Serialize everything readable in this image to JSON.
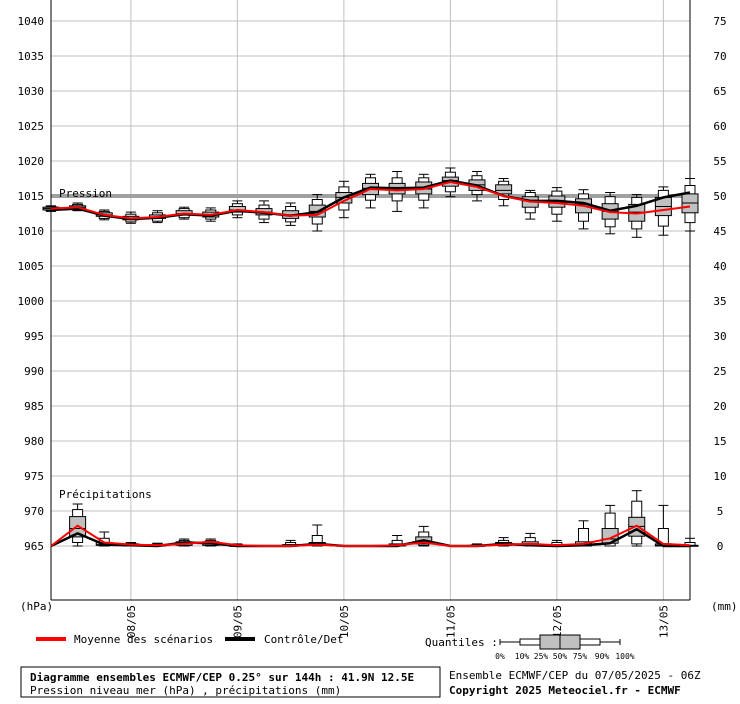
{
  "chart_data": {
    "type": "boxplot",
    "title": "Diagramme ensembles ECMWF/CEP 0.25° sur 144h : 41.9N 12.5E",
    "subtitle": "Pression niveau mer (hPa) , précipitations (mm)",
    "run_info": "Ensemble ECMWF/CEP du 07/05/2025 - 06Z",
    "copyright": "Copyright 2025 Meteociel.fr - ECMWF",
    "pressure_label": "Pression",
    "precip_label": "Précipitations",
    "left_unit": "(hPa)",
    "right_unit": "(mm)",
    "left_axis": {
      "ticks": [
        965,
        970,
        975,
        980,
        985,
        990,
        995,
        1000,
        1005,
        1010,
        1015,
        1020,
        1025,
        1030,
        1035,
        1040
      ],
      "range": [
        957.1,
        1043.3
      ]
    },
    "right_axis": {
      "ticks": [
        0,
        5,
        10,
        15,
        20,
        25,
        30,
        35,
        40,
        45,
        50,
        55,
        60,
        65,
        70,
        75
      ]
    },
    "date_ticks": [
      {
        "label": "08/05",
        "t": 18
      },
      {
        "label": "09/05",
        "t": 42
      },
      {
        "label": "10/05",
        "t": 66
      },
      {
        "label": "11/05",
        "t": 90
      },
      {
        "label": "12/05",
        "t": 114
      },
      {
        "label": "13/05",
        "t": 138
      }
    ],
    "time_range": [
      0,
      144
    ],
    "reference_line": 1015,
    "legend": {
      "mean": "Moyenne des scénarios",
      "control": "Contrôle/Det",
      "quantiles_title": "Quantiles :",
      "quantiles": [
        "0%",
        "10%",
        "25%",
        "50%",
        "75%",
        "90%",
        "100%"
      ]
    },
    "colors": {
      "mean": "#ff0000",
      "control": "#000000",
      "box": "#c0c0c0",
      "grid": "#c0c0c0",
      "ref": "#a0a0a0"
    },
    "pressure": {
      "t": [
        0,
        6,
        12,
        18,
        24,
        30,
        36,
        42,
        48,
        54,
        60,
        66,
        72,
        78,
        84,
        90,
        96,
        102,
        108,
        114,
        120,
        126,
        132,
        138,
        144
      ],
      "mean": [
        1013.2,
        1013.4,
        1012.3,
        1011.8,
        1012.0,
        1012.5,
        1012.3,
        1013.0,
        1012.7,
        1012.2,
        1012.3,
        1014.3,
        1016.0,
        1015.8,
        1016.0,
        1017.0,
        1016.3,
        1015.0,
        1014.2,
        1014.0,
        1013.6,
        1012.7,
        1012.5,
        1013.0,
        1013.5
      ],
      "control": [
        1013.0,
        1013.2,
        1012.2,
        1011.7,
        1011.9,
        1012.4,
        1012.2,
        1012.9,
        1012.6,
        1012.2,
        1012.7,
        1014.8,
        1016.2,
        1016.1,
        1016.2,
        1017.2,
        1016.5,
        1015.0,
        1014.3,
        1014.3,
        1014.0,
        1012.9,
        1013.6,
        1014.8,
        1015.5
      ],
      "boxes": [
        {
          "t": 0,
          "q": [
            1012.8,
            1012.9,
            1013.0,
            1013.2,
            1013.4,
            1013.5,
            1013.6
          ]
        },
        {
          "t": 6,
          "q": [
            1012.9,
            1013.0,
            1013.2,
            1013.4,
            1013.6,
            1013.8,
            1014.0
          ]
        },
        {
          "t": 12,
          "q": [
            1011.6,
            1011.8,
            1012.1,
            1012.3,
            1012.6,
            1012.8,
            1013.0
          ]
        },
        {
          "t": 18,
          "q": [
            1011.1,
            1011.3,
            1011.6,
            1011.8,
            1012.1,
            1012.4,
            1012.7
          ]
        },
        {
          "t": 24,
          "q": [
            1011.2,
            1011.4,
            1011.8,
            1012.0,
            1012.3,
            1012.6,
            1012.9
          ]
        },
        {
          "t": 30,
          "q": [
            1011.7,
            1011.9,
            1012.3,
            1012.5,
            1012.9,
            1013.2,
            1013.4
          ]
        },
        {
          "t": 36,
          "q": [
            1011.4,
            1011.7,
            1012.0,
            1012.3,
            1012.7,
            1013.0,
            1013.3
          ]
        },
        {
          "t": 42,
          "q": [
            1011.9,
            1012.3,
            1012.7,
            1013.0,
            1013.5,
            1013.9,
            1014.3
          ]
        },
        {
          "t": 48,
          "q": [
            1011.2,
            1011.7,
            1012.3,
            1012.7,
            1013.2,
            1013.7,
            1014.3
          ]
        },
        {
          "t": 54,
          "q": [
            1010.8,
            1011.3,
            1011.8,
            1012.3,
            1012.9,
            1013.5,
            1014.0
          ]
        },
        {
          "t": 60,
          "q": [
            1010.0,
            1011.0,
            1012.0,
            1012.8,
            1013.7,
            1014.5,
            1015.2
          ]
        },
        {
          "t": 66,
          "q": [
            1011.9,
            1013.0,
            1014.0,
            1014.8,
            1015.5,
            1016.3,
            1017.1
          ]
        },
        {
          "t": 72,
          "q": [
            1013.3,
            1014.4,
            1015.2,
            1016.1,
            1016.8,
            1017.6,
            1018.1
          ]
        },
        {
          "t": 78,
          "q": [
            1012.8,
            1014.3,
            1015.3,
            1016.0,
            1016.8,
            1017.6,
            1018.5
          ]
        },
        {
          "t": 84,
          "q": [
            1013.3,
            1014.4,
            1015.3,
            1016.0,
            1017.0,
            1017.6,
            1018.1
          ]
        },
        {
          "t": 90,
          "q": [
            1014.9,
            1015.6,
            1016.4,
            1017.2,
            1017.7,
            1018.4,
            1019.0
          ]
        },
        {
          "t": 96,
          "q": [
            1014.3,
            1015.2,
            1015.8,
            1016.6,
            1017.3,
            1017.9,
            1018.5
          ]
        },
        {
          "t": 102,
          "q": [
            1013.6,
            1014.5,
            1015.3,
            1015.8,
            1016.6,
            1017.1,
            1017.5
          ]
        },
        {
          "t": 108,
          "q": [
            1011.7,
            1012.6,
            1013.4,
            1014.3,
            1014.9,
            1015.5,
            1015.8
          ]
        },
        {
          "t": 114,
          "q": [
            1011.4,
            1012.4,
            1013.4,
            1014.3,
            1015.0,
            1015.7,
            1016.2
          ]
        },
        {
          "t": 120,
          "q": [
            1010.3,
            1011.4,
            1012.6,
            1013.8,
            1014.6,
            1015.3,
            1015.9
          ]
        },
        {
          "t": 126,
          "q": [
            1009.6,
            1010.6,
            1011.7,
            1012.8,
            1013.9,
            1014.9,
            1015.5
          ]
        },
        {
          "t": 132,
          "q": [
            1009.1,
            1010.3,
            1011.4,
            1012.7,
            1013.8,
            1014.8,
            1015.2
          ]
        },
        {
          "t": 138,
          "q": [
            1009.4,
            1010.7,
            1012.2,
            1013.5,
            1014.8,
            1015.8,
            1016.3
          ]
        },
        {
          "t": 144,
          "q": [
            1010.0,
            1011.2,
            1012.6,
            1014.0,
            1015.3,
            1016.5,
            1017.5
          ]
        }
      ]
    },
    "precip": {
      "t": [
        0,
        6,
        12,
        18,
        24,
        30,
        36,
        42,
        48,
        54,
        60,
        66,
        72,
        78,
        84,
        90,
        96,
        102,
        108,
        114,
        120,
        126,
        132,
        138,
        144
      ],
      "mean": [
        0.0,
        2.9,
        0.5,
        0.2,
        0.1,
        0.3,
        0.6,
        0.1,
        0.0,
        0.0,
        0.2,
        0.0,
        0.0,
        0.1,
        0.5,
        0.0,
        0.0,
        0.2,
        0.3,
        0.1,
        0.3,
        1.1,
        2.9,
        0.3,
        0.1
      ],
      "control": [
        0.0,
        1.8,
        0.2,
        0.1,
        0.0,
        0.5,
        0.4,
        0.0,
        0.0,
        0.0,
        0.3,
        0.0,
        0.0,
        0.0,
        0.8,
        0.0,
        0.0,
        0.3,
        0.1,
        0.0,
        0.1,
        0.4,
        2.4,
        0.0,
        0.0
      ],
      "boxes": [
        {
          "t": 6,
          "q": [
            0.0,
            0.5,
            1.3,
            2.5,
            4.2,
            5.2,
            6.0
          ]
        },
        {
          "t": 12,
          "q": [
            0.0,
            0.0,
            0.1,
            0.2,
            0.5,
            1.1,
            2.0
          ]
        },
        {
          "t": 18,
          "q": [
            0.0,
            0.0,
            0.0,
            0.1,
            0.3,
            0.4,
            0.5
          ]
        },
        {
          "t": 24,
          "q": [
            0.0,
            0.0,
            0.0,
            0.1,
            0.2,
            0.3,
            0.4
          ]
        },
        {
          "t": 30,
          "q": [
            0.0,
            0.0,
            0.1,
            0.3,
            0.6,
            0.8,
            1.0
          ]
        },
        {
          "t": 36,
          "q": [
            0.0,
            0.0,
            0.1,
            0.3,
            0.6,
            0.8,
            1.0
          ]
        },
        {
          "t": 42,
          "q": [
            0.0,
            0.0,
            0.0,
            0.0,
            0.1,
            0.2,
            0.3
          ]
        },
        {
          "t": 54,
          "q": [
            0.0,
            0.0,
            0.0,
            0.1,
            0.2,
            0.5,
            0.8
          ]
        },
        {
          "t": 60,
          "q": [
            0.0,
            0.0,
            0.1,
            0.2,
            0.5,
            1.5,
            3.0
          ]
        },
        {
          "t": 78,
          "q": [
            0.0,
            0.0,
            0.0,
            0.1,
            0.3,
            0.8,
            1.5
          ]
        },
        {
          "t": 84,
          "q": [
            0.0,
            0.1,
            0.3,
            0.7,
            1.3,
            2.0,
            2.8
          ]
        },
        {
          "t": 96,
          "q": [
            0.0,
            0.0,
            0.0,
            0.0,
            0.1,
            0.2,
            0.3
          ]
        },
        {
          "t": 102,
          "q": [
            0.0,
            0.0,
            0.1,
            0.2,
            0.5,
            0.8,
            1.2
          ]
        },
        {
          "t": 108,
          "q": [
            0.0,
            0.0,
            0.1,
            0.3,
            0.6,
            1.2,
            1.8
          ]
        },
        {
          "t": 114,
          "q": [
            0.0,
            0.0,
            0.0,
            0.1,
            0.2,
            0.5,
            0.8
          ]
        },
        {
          "t": 120,
          "q": [
            0.0,
            0.0,
            0.0,
            0.1,
            0.6,
            2.5,
            3.6
          ]
        },
        {
          "t": 126,
          "q": [
            0.0,
            0.0,
            0.4,
            1.0,
            2.5,
            4.7,
            5.8
          ]
        },
        {
          "t": 132,
          "q": [
            0.0,
            0.3,
            1.4,
            2.8,
            4.1,
            6.4,
            7.9
          ]
        },
        {
          "t": 138,
          "q": [
            0.0,
            0.0,
            0.0,
            0.1,
            0.3,
            2.5,
            5.8
          ]
        },
        {
          "t": 144,
          "q": [
            0.0,
            0.0,
            0.0,
            0.0,
            0.1,
            0.5,
            1.1
          ]
        }
      ]
    }
  }
}
